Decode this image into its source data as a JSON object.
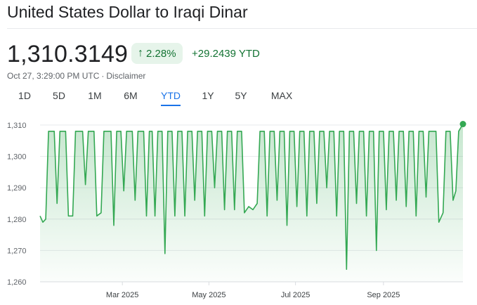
{
  "header": {
    "title": "United States Dollar to Iraqi Dinar",
    "price": "1,310.3149",
    "percent_change": "2.28%",
    "change": "+29.2439 YTD",
    "timestamp": "Oct 27, 3:29:00 PM UTC",
    "separator": "·",
    "disclaimer": "Disclaimer",
    "arrow_icon": "arrow-up-icon",
    "arrow_glyph": "↑"
  },
  "tabs": [
    {
      "label": "1D",
      "active": false
    },
    {
      "label": "5D",
      "active": false
    },
    {
      "label": "1M",
      "active": false
    },
    {
      "label": "6M",
      "active": false
    },
    {
      "label": "YTD",
      "active": true
    },
    {
      "label": "1Y",
      "active": false
    },
    {
      "label": "5Y",
      "active": false
    },
    {
      "label": "MAX",
      "active": false
    }
  ],
  "colors": {
    "line": "#34a853",
    "fill": "#34a853",
    "positive_text": "#137333",
    "positive_bg": "#e6f4ea",
    "active_tab": "#1a73e8"
  },
  "chart_data": {
    "type": "line",
    "ylim": [
      1260,
      1312
    ],
    "yticks": [
      {
        "label": "1,310",
        "value": 1310
      },
      {
        "label": "1,300",
        "value": 1300
      },
      {
        "label": "1,290",
        "value": 1290
      },
      {
        "label": "1,280",
        "value": 1280
      },
      {
        "label": "1,270",
        "value": 1270
      },
      {
        "label": "1,260",
        "value": 1260
      }
    ],
    "x_range": [
      "2025-01-02",
      "2025-10-27"
    ],
    "xticks": [
      {
        "label": "Mar 2025",
        "date": "2025-03-01"
      },
      {
        "label": "May 2025",
        "date": "2025-05-01"
      },
      {
        "label": "Jul 2025",
        "date": "2025-07-01"
      },
      {
        "label": "Sep 2025",
        "date": "2025-09-01"
      }
    ],
    "grid": true,
    "series": [
      {
        "values": [
          [
            "2025-01-02",
            1281
          ],
          [
            "2025-01-04",
            1279
          ],
          [
            "2025-01-06",
            1280
          ],
          [
            "2025-01-08",
            1308
          ],
          [
            "2025-01-12",
            1308
          ],
          [
            "2025-01-14",
            1285
          ],
          [
            "2025-01-16",
            1308
          ],
          [
            "2025-01-20",
            1308
          ],
          [
            "2025-01-22",
            1281
          ],
          [
            "2025-01-25",
            1281
          ],
          [
            "2025-01-27",
            1308
          ],
          [
            "2025-02-01",
            1308
          ],
          [
            "2025-02-03",
            1291
          ],
          [
            "2025-02-05",
            1308
          ],
          [
            "2025-02-09",
            1308
          ],
          [
            "2025-02-11",
            1281
          ],
          [
            "2025-02-14",
            1282
          ],
          [
            "2025-02-16",
            1308
          ],
          [
            "2025-02-21",
            1308
          ],
          [
            "2025-02-23",
            1278
          ],
          [
            "2025-02-25",
            1308
          ],
          [
            "2025-02-28",
            1308
          ],
          [
            "2025-03-02",
            1289
          ],
          [
            "2025-03-04",
            1308
          ],
          [
            "2025-03-08",
            1308
          ],
          [
            "2025-03-10",
            1286
          ],
          [
            "2025-03-12",
            1308
          ],
          [
            "2025-03-16",
            1308
          ],
          [
            "2025-03-18",
            1281
          ],
          [
            "2025-03-20",
            1308
          ],
          [
            "2025-03-22",
            1308
          ],
          [
            "2025-03-24",
            1281
          ],
          [
            "2025-03-26",
            1308
          ],
          [
            "2025-03-29",
            1308
          ],
          [
            "2025-03-31",
            1269
          ],
          [
            "2025-04-02",
            1308
          ],
          [
            "2025-04-05",
            1308
          ],
          [
            "2025-04-07",
            1281
          ],
          [
            "2025-04-09",
            1308
          ],
          [
            "2025-04-12",
            1308
          ],
          [
            "2025-04-14",
            1281
          ],
          [
            "2025-04-16",
            1308
          ],
          [
            "2025-04-19",
            1308
          ],
          [
            "2025-04-21",
            1286
          ],
          [
            "2025-04-23",
            1308
          ],
          [
            "2025-04-26",
            1308
          ],
          [
            "2025-04-28",
            1281
          ],
          [
            "2025-04-30",
            1308
          ],
          [
            "2025-05-03",
            1308
          ],
          [
            "2025-05-05",
            1290
          ],
          [
            "2025-05-07",
            1308
          ],
          [
            "2025-05-10",
            1308
          ],
          [
            "2025-05-12",
            1283
          ],
          [
            "2025-05-14",
            1308
          ],
          [
            "2025-05-17",
            1308
          ],
          [
            "2025-05-19",
            1283
          ],
          [
            "2025-05-21",
            1308
          ],
          [
            "2025-05-24",
            1308
          ],
          [
            "2025-05-26",
            1282
          ],
          [
            "2025-05-29",
            1284
          ],
          [
            "2025-06-01",
            1283
          ],
          [
            "2025-06-04",
            1285
          ],
          [
            "2025-06-06",
            1308
          ],
          [
            "2025-06-09",
            1308
          ],
          [
            "2025-06-11",
            1281
          ],
          [
            "2025-06-13",
            1308
          ],
          [
            "2025-06-16",
            1308
          ],
          [
            "2025-06-18",
            1286
          ],
          [
            "2025-06-20",
            1308
          ],
          [
            "2025-06-23",
            1308
          ],
          [
            "2025-06-25",
            1278
          ],
          [
            "2025-06-27",
            1308
          ],
          [
            "2025-06-30",
            1308
          ],
          [
            "2025-07-02",
            1284
          ],
          [
            "2025-07-04",
            1308
          ],
          [
            "2025-07-07",
            1308
          ],
          [
            "2025-07-09",
            1281
          ],
          [
            "2025-07-11",
            1308
          ],
          [
            "2025-07-14",
            1308
          ],
          [
            "2025-07-16",
            1285
          ],
          [
            "2025-07-18",
            1308
          ],
          [
            "2025-07-21",
            1308
          ],
          [
            "2025-07-23",
            1290
          ],
          [
            "2025-07-25",
            1308
          ],
          [
            "2025-07-28",
            1308
          ],
          [
            "2025-07-30",
            1281
          ],
          [
            "2025-08-01",
            1308
          ],
          [
            "2025-08-04",
            1308
          ],
          [
            "2025-08-06",
            1264
          ],
          [
            "2025-08-08",
            1308
          ],
          [
            "2025-08-11",
            1308
          ],
          [
            "2025-08-13",
            1285
          ],
          [
            "2025-08-15",
            1308
          ],
          [
            "2025-08-18",
            1308
          ],
          [
            "2025-08-20",
            1281
          ],
          [
            "2025-08-22",
            1308
          ],
          [
            "2025-08-25",
            1308
          ],
          [
            "2025-08-27",
            1270
          ],
          [
            "2025-08-29",
            1308
          ],
          [
            "2025-09-01",
            1308
          ],
          [
            "2025-09-03",
            1283
          ],
          [
            "2025-09-05",
            1308
          ],
          [
            "2025-09-08",
            1308
          ],
          [
            "2025-09-10",
            1286
          ],
          [
            "2025-09-12",
            1308
          ],
          [
            "2025-09-15",
            1308
          ],
          [
            "2025-09-17",
            1284
          ],
          [
            "2025-09-19",
            1308
          ],
          [
            "2025-09-22",
            1308
          ],
          [
            "2025-09-24",
            1281
          ],
          [
            "2025-09-26",
            1308
          ],
          [
            "2025-09-29",
            1308
          ],
          [
            "2025-10-01",
            1287
          ],
          [
            "2025-10-03",
            1308
          ],
          [
            "2025-10-08",
            1308
          ],
          [
            "2025-10-10",
            1279
          ],
          [
            "2025-10-13",
            1282
          ],
          [
            "2025-10-15",
            1308
          ],
          [
            "2025-10-18",
            1308
          ],
          [
            "2025-10-20",
            1286
          ],
          [
            "2025-10-22",
            1289
          ],
          [
            "2025-10-24",
            1308
          ],
          [
            "2025-10-27",
            1310.31
          ]
        ]
      }
    ]
  }
}
